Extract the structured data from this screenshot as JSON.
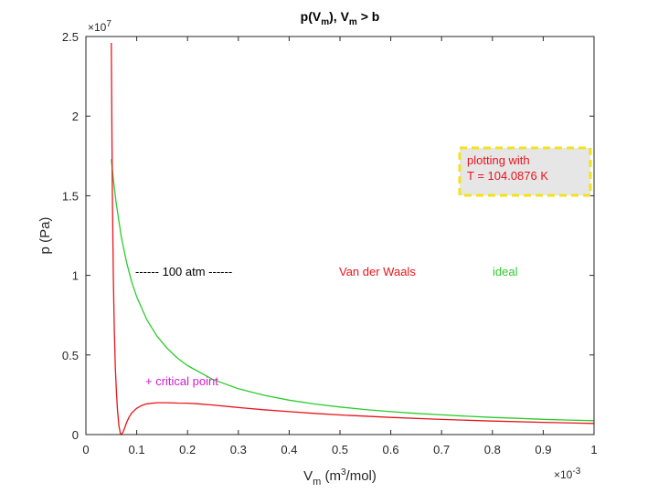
{
  "chart_data": {
    "type": "line",
    "title": "p(Vm), Vm > b",
    "xlabel": "Vm (m3/mol)",
    "ylabel": "p (Pa)",
    "x_exponent": "×10-3",
    "y_exponent": "×107",
    "xlim": [
      0,
      1
    ],
    "ylim": [
      0,
      2.5
    ],
    "x_ticks": [
      "0",
      "0.1",
      "0.2",
      "0.3",
      "0.4",
      "0.5",
      "0.6",
      "0.7",
      "0.8",
      "0.9",
      "1"
    ],
    "y_ticks": [
      "0",
      "0.5",
      "1",
      "1.5",
      "2",
      "2.5"
    ],
    "grid": false,
    "series": [
      {
        "name": "Van der Waals",
        "color": "#e8141b",
        "x": [
          0.05,
          0.052,
          0.054,
          0.056,
          0.058,
          0.06,
          0.062,
          0.065,
          0.068,
          0.07,
          0.073,
          0.076,
          0.08,
          0.085,
          0.09,
          0.1,
          0.11,
          0.12,
          0.14,
          0.16,
          0.18,
          0.2,
          0.22,
          0.25,
          0.3,
          0.35,
          0.4,
          0.45,
          0.5,
          0.6,
          0.7,
          0.8,
          0.9,
          1.0
        ],
        "y": [
          2.46,
          1.55,
          1.0,
          0.65,
          0.42,
          0.27,
          0.16,
          0.055,
          0.005,
          0.0,
          0.015,
          0.04,
          0.075,
          0.11,
          0.135,
          0.165,
          0.183,
          0.193,
          0.2,
          0.2,
          0.198,
          0.197,
          0.193,
          0.186,
          0.17,
          0.156,
          0.144,
          0.133,
          0.123,
          0.108,
          0.095,
          0.085,
          0.077,
          0.07
        ]
      },
      {
        "name": "ideal",
        "color": "#2ccc2c",
        "x": [
          0.05,
          0.055,
          0.06,
          0.07,
          0.08,
          0.09,
          0.1,
          0.12,
          0.14,
          0.16,
          0.18,
          0.2,
          0.25,
          0.3,
          0.35,
          0.4,
          0.45,
          0.5,
          0.55,
          0.6,
          0.65,
          0.7,
          0.75,
          0.8,
          0.85,
          0.9,
          0.95,
          1.0
        ],
        "y": [
          1.73,
          1.573,
          1.442,
          1.236,
          1.082,
          0.961,
          0.865,
          0.721,
          0.618,
          0.541,
          0.481,
          0.433,
          0.346,
          0.288,
          0.247,
          0.216,
          0.192,
          0.173,
          0.157,
          0.144,
          0.133,
          0.124,
          0.115,
          0.108,
          0.102,
          0.096,
          0.091,
          0.087
        ]
      }
    ],
    "annotations": {
      "reference_line": "------ 100 atm ------",
      "vdw_label": "Van der Waals",
      "ideal_label": "ideal",
      "critical_point": "+ critical point",
      "info_box_line1": "plotting with",
      "info_box_line2": "T = 104.0876 K"
    }
  }
}
